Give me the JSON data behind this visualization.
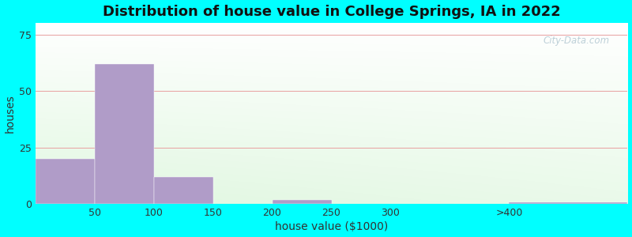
{
  "title": "Distribution of house value in College Springs, IA in 2022",
  "xlabel": "house value ($1000)",
  "ylabel": "houses",
  "bar_color": "#b09cc8",
  "background_outer": "#00ffff",
  "yticks": [
    0,
    25,
    50,
    75
  ],
  "ylim": [
    0,
    80
  ],
  "bar_lefts": [
    0,
    50,
    100,
    150,
    200,
    250,
    300,
    400
  ],
  "bar_rights": [
    50,
    100,
    150,
    200,
    250,
    300,
    400,
    500
  ],
  "bar_values": [
    20,
    62,
    12,
    0,
    2,
    0,
    0,
    1
  ],
  "xlim": [
    0,
    500
  ],
  "xtick_positions": [
    50,
    100,
    150,
    200,
    250,
    300,
    400
  ],
  "xtick_labels": [
    "50",
    "100",
    "150",
    "200",
    "250",
    "300",
    ">400"
  ],
  "title_fontsize": 13,
  "axis_label_fontsize": 10,
  "tick_fontsize": 9,
  "grid_color": "#e8a0a0",
  "watermark": "City-Data.com"
}
